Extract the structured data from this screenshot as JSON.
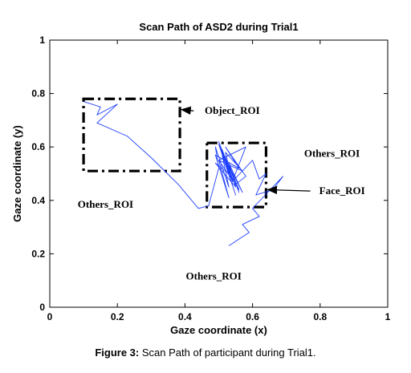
{
  "caption": {
    "label": "Figure 3:",
    "text": " Scan Path of participant during Trial1."
  },
  "chart_data": {
    "type": "line",
    "title": "Scan Path of ASD2 during Trial1",
    "xlabel": "Gaze coordinate (x)",
    "ylabel": "Gaze coordinate (y)",
    "xlim": [
      0,
      1
    ],
    "ylim": [
      0,
      1
    ],
    "xticks": [
      0,
      0.2,
      0.4,
      0.6,
      0.8,
      1
    ],
    "yticks": [
      0,
      0.2,
      0.4,
      0.6,
      0.8,
      1
    ],
    "xtick_labels": [
      "0",
      "0.2",
      "0.4",
      "0.6",
      "0.8",
      "1"
    ],
    "ytick_labels": [
      "0",
      "0.2",
      "0.4",
      "0.6",
      "0.8",
      "1"
    ],
    "grid": false,
    "series_color": "#1f3fff",
    "scan_path": {
      "x": [
        0.1,
        0.15,
        0.14,
        0.2,
        0.14,
        0.23,
        0.3,
        0.38,
        0.44,
        0.47,
        0.5,
        0.49,
        0.53,
        0.51,
        0.55,
        0.5,
        0.54,
        0.52,
        0.56,
        0.51,
        0.53,
        0.49,
        0.55,
        0.5,
        0.54,
        0.52,
        0.57,
        0.5,
        0.53,
        0.49,
        0.56,
        0.52,
        0.58,
        0.55,
        0.53,
        0.57,
        0.51,
        0.54,
        0.56,
        0.5,
        0.58,
        0.54,
        0.6,
        0.62,
        0.64,
        0.61,
        0.66,
        0.69,
        0.63,
        0.6,
        0.62,
        0.57,
        0.59,
        0.53
      ],
      "y": [
        0.77,
        0.75,
        0.72,
        0.76,
        0.69,
        0.64,
        0.56,
        0.46,
        0.37,
        0.38,
        0.52,
        0.6,
        0.45,
        0.57,
        0.42,
        0.61,
        0.48,
        0.56,
        0.43,
        0.59,
        0.5,
        0.54,
        0.45,
        0.62,
        0.47,
        0.58,
        0.51,
        0.55,
        0.41,
        0.57,
        0.52,
        0.6,
        0.49,
        0.46,
        0.54,
        0.43,
        0.58,
        0.5,
        0.44,
        0.55,
        0.6,
        0.47,
        0.55,
        0.48,
        0.5,
        0.42,
        0.44,
        0.49,
        0.41,
        0.37,
        0.34,
        0.31,
        0.28,
        0.23
      ]
    },
    "rois": [
      {
        "name": "Object_ROI",
        "x0": 0.1,
        "x1": 0.385,
        "y0": 0.51,
        "y1": 0.78,
        "label_x": 0.54,
        "label_y": 0.735,
        "arrow_to_x": 0.385,
        "arrow_to_y": 0.74
      },
      {
        "name": "Face_ROI",
        "x0": 0.465,
        "x1": 0.64,
        "y0": 0.375,
        "y1": 0.615,
        "label_x": 0.865,
        "label_y": 0.435,
        "arrow_to_x": 0.64,
        "arrow_to_y": 0.44
      }
    ],
    "annotations": [
      {
        "text": "Others_ROI",
        "x": 0.835,
        "y": 0.575
      },
      {
        "text": "Others_ROI",
        "x": 0.165,
        "y": 0.385
      },
      {
        "text": "Others_ROI",
        "x": 0.485,
        "y": 0.115
      }
    ]
  }
}
